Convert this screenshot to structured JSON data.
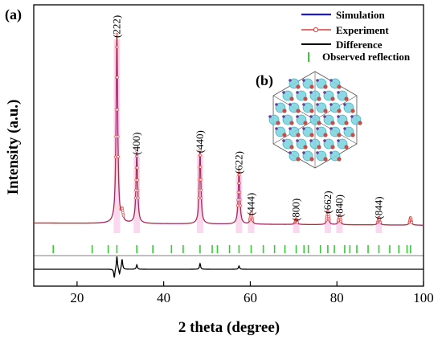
{
  "panel_labels": {
    "a": "(a)",
    "b": "(b)"
  },
  "chart_data": {
    "type": "line",
    "xlabel": "2 theta (degree)",
    "ylabel": "Intensity (a.u.)",
    "xlim": [
      10,
      100
    ],
    "x_ticks": [
      20,
      40,
      60,
      80,
      100
    ],
    "grid": false,
    "legend_position": "top-right",
    "legend": [
      {
        "label": "Simulation",
        "color": "#1a1ad6",
        "style": "line"
      },
      {
        "label": "Experiment",
        "color": "#e03b3b",
        "style": "line-circle"
      },
      {
        "label": "Difference",
        "color": "#000000",
        "style": "line"
      },
      {
        "label": "Observed reflection",
        "color": "#33cc33",
        "style": "tick"
      }
    ],
    "peaks": [
      {
        "x": 29.2,
        "intensity": 1.0,
        "label": "(222)"
      },
      {
        "x": 30.4,
        "intensity": 0.05
      },
      {
        "x": 33.8,
        "intensity": 0.38,
        "label": "(400)"
      },
      {
        "x": 48.4,
        "intensity": 0.39,
        "label": "(440)"
      },
      {
        "x": 57.4,
        "intensity": 0.28,
        "label": "(622)"
      },
      {
        "x": 60.2,
        "intensity": 0.06,
        "label": "(444)"
      },
      {
        "x": 70.6,
        "intensity": 0.03,
        "label": "(800)"
      },
      {
        "x": 77.9,
        "intensity": 0.07,
        "label": "(662)"
      },
      {
        "x": 80.6,
        "intensity": 0.05,
        "label": "(840)"
      },
      {
        "x": 89.7,
        "intensity": 0.04,
        "label": "(844)"
      },
      {
        "x": 97.0,
        "intensity": 0.04
      }
    ],
    "observed_reflections_x": [
      14.5,
      23.5,
      27.2,
      29.2,
      33.8,
      37.5,
      41.8,
      44.5,
      48.4,
      51.2,
      52.4,
      55.2,
      57.4,
      60.2,
      63.0,
      65.6,
      68.0,
      70.6,
      72.4,
      73.4,
      76.2,
      77.9,
      79.4,
      81.8,
      83.0,
      84.6,
      87.2,
      89.7,
      92.2,
      94.3,
      96.2,
      97.0
    ],
    "difference": [
      {
        "x": 28.6,
        "y": -0.08
      },
      {
        "x": 29.2,
        "y": 0.12
      },
      {
        "x": 29.8,
        "y": -0.05
      },
      {
        "x": 30.4,
        "y": 0.09
      },
      {
        "x": 33.8,
        "y": 0.04
      },
      {
        "x": 48.4,
        "y": 0.05
      },
      {
        "x": 57.4,
        "y": 0.03
      }
    ]
  }
}
